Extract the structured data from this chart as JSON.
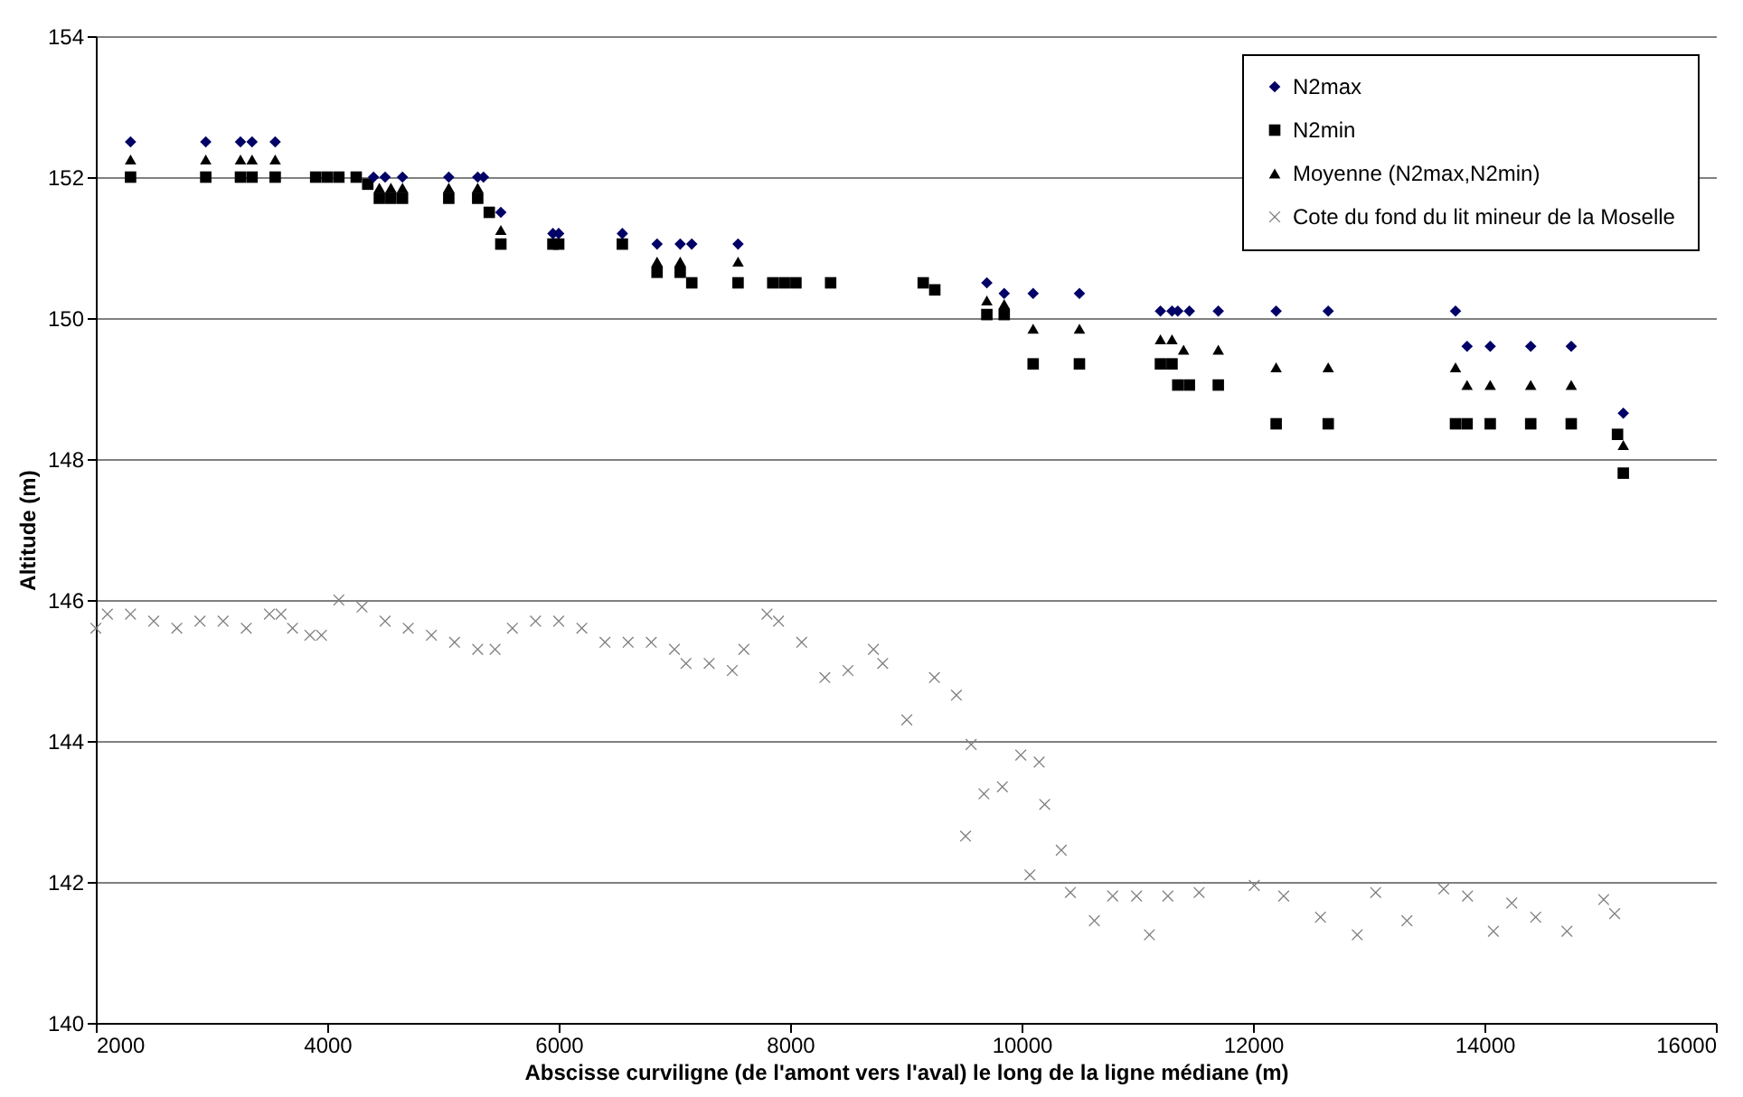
{
  "chart_data": {
    "type": "scatter",
    "xlabel": "Abscisse curviligne (de l'amont vers l'aval) le long de la ligne médiane (m)",
    "ylabel": "Altitude (m)",
    "xlim": [
      2000,
      16000
    ],
    "xticks": [
      2000,
      4000,
      6000,
      8000,
      10000,
      12000,
      14000,
      16000
    ],
    "ylim": [
      140,
      154
    ],
    "yticks": [
      140,
      142,
      144,
      146,
      148,
      150,
      152,
      154
    ],
    "grid": "y",
    "legend": "top right",
    "series": [
      {
        "name": "N2max",
        "color": "#000066",
        "marker": "diamond",
        "x": [
          2300,
          2950,
          3250,
          3350,
          3550,
          4400,
          4500,
          4650,
          5050,
          5300,
          5350,
          5500,
          5950,
          6000,
          6550,
          6850,
          7050,
          7150,
          7550,
          9700,
          9850,
          10100,
          10500,
          11200,
          11300,
          11350,
          11450,
          11700,
          12200,
          12650,
          13750,
          13850,
          14050,
          14400,
          14750,
          15200
        ],
        "values": [
          152.5,
          152.5,
          152.5,
          152.5,
          152.5,
          152,
          152,
          152,
          152,
          152,
          152,
          151.5,
          151.2,
          151.2,
          151.2,
          151.05,
          151.05,
          151.05,
          151.05,
          150.5,
          150.35,
          150.35,
          150.35,
          150.1,
          150.1,
          150.1,
          150.1,
          150.1,
          150.1,
          150.1,
          150.1,
          149.6,
          149.6,
          149.6,
          149.6,
          148.65
        ]
      },
      {
        "name": "N2min",
        "color": "#000000",
        "marker": "square",
        "x": [
          2300,
          2950,
          3250,
          3350,
          3550,
          3900,
          4000,
          4100,
          4250,
          4350,
          4450,
          4550,
          4650,
          5050,
          5300,
          5400,
          5500,
          5950,
          6000,
          6550,
          6850,
          7050,
          7150,
          7550,
          7850,
          7950,
          8050,
          8350,
          9150,
          9250,
          9700,
          9850,
          10100,
          10500,
          11200,
          11300,
          11350,
          11450,
          11700,
          12200,
          12650,
          13750,
          13850,
          14050,
          14400,
          14750,
          15150,
          15200
        ],
        "values": [
          152,
          152,
          152,
          152,
          152,
          152,
          152,
          152,
          152,
          151.9,
          151.7,
          151.7,
          151.7,
          151.7,
          151.7,
          151.5,
          151.05,
          151.05,
          151.05,
          151.05,
          150.65,
          150.65,
          150.5,
          150.5,
          150.5,
          150.5,
          150.5,
          150.5,
          150.5,
          150.4,
          150.05,
          150.05,
          149.35,
          149.35,
          149.35,
          149.35,
          149.05,
          149.05,
          149.05,
          148.5,
          148.5,
          148.5,
          148.5,
          148.5,
          148.5,
          148.5,
          148.35,
          147.8
        ]
      },
      {
        "name": "Moyenne (N2max,N2min)",
        "color": "#000000",
        "marker": "triangle",
        "x": [
          2300,
          2950,
          3250,
          3350,
          3550,
          4450,
          4550,
          4650,
          5050,
          5300,
          5500,
          6850,
          7050,
          7550,
          9700,
          9850,
          10100,
          10500,
          11200,
          11300,
          11400,
          11700,
          12200,
          12650,
          13750,
          13850,
          14050,
          14400,
          14750,
          15200
        ],
        "values": [
          152.25,
          152.25,
          152.25,
          152.25,
          152.25,
          151.85,
          151.85,
          151.85,
          151.85,
          151.85,
          151.25,
          150.8,
          150.8,
          150.8,
          150.25,
          150.2,
          149.85,
          149.85,
          149.7,
          149.7,
          149.55,
          149.55,
          149.3,
          149.3,
          149.3,
          149.05,
          149.05,
          149.05,
          149.05,
          148.2
        ]
      },
      {
        "name": "Cote du fond du lit mineur de la Moselle",
        "color": "#808080",
        "marker": "cross",
        "x": [
          2000,
          2100,
          2300,
          2500,
          2700,
          2900,
          3100,
          3300,
          3500,
          3600,
          3700,
          3850,
          3950,
          4100,
          4300,
          4500,
          4700,
          4900,
          5100,
          5300,
          5450,
          5600,
          5800,
          6000,
          6200,
          6400,
          6600,
          6800,
          7000,
          7100,
          7300,
          7500,
          7600,
          7800,
          7900,
          8100,
          8300,
          8500,
          8720,
          8800,
          9008,
          9247,
          9437,
          9516,
          9564,
          9675,
          9834,
          9993,
          10072,
          10152,
          10200,
          10343,
          10422,
          10629,
          10787,
          10994,
          11105,
          11264,
          11534,
          12011,
          12265,
          12583,
          12901,
          13060,
          13330,
          13648,
          13854,
          14077,
          14236,
          14443,
          14713,
          15030,
          15125
        ],
        "values": [
          145.6,
          145.8,
          145.8,
          145.7,
          145.6,
          145.7,
          145.7,
          145.6,
          145.8,
          145.8,
          145.6,
          145.5,
          145.5,
          146,
          145.9,
          145.7,
          145.6,
          145.5,
          145.4,
          145.3,
          145.3,
          145.6,
          145.7,
          145.7,
          145.6,
          145.4,
          145.4,
          145.4,
          145.3,
          145.1,
          145.1,
          145,
          145.3,
          145.8,
          145.7,
          145.4,
          144.9,
          145,
          145.3,
          145.1,
          144.3,
          144.9,
          144.65,
          142.65,
          143.95,
          143.25,
          143.35,
          143.8,
          142.1,
          143.7,
          143.1,
          142.45,
          141.85,
          141.45,
          141.8,
          141.8,
          141.25,
          141.8,
          141.85,
          141.95,
          141.8,
          141.5,
          141.25,
          141.85,
          141.45,
          141.9,
          141.8,
          141.3,
          141.7,
          141.5,
          141.3,
          141.75,
          141.55
        ]
      }
    ]
  }
}
